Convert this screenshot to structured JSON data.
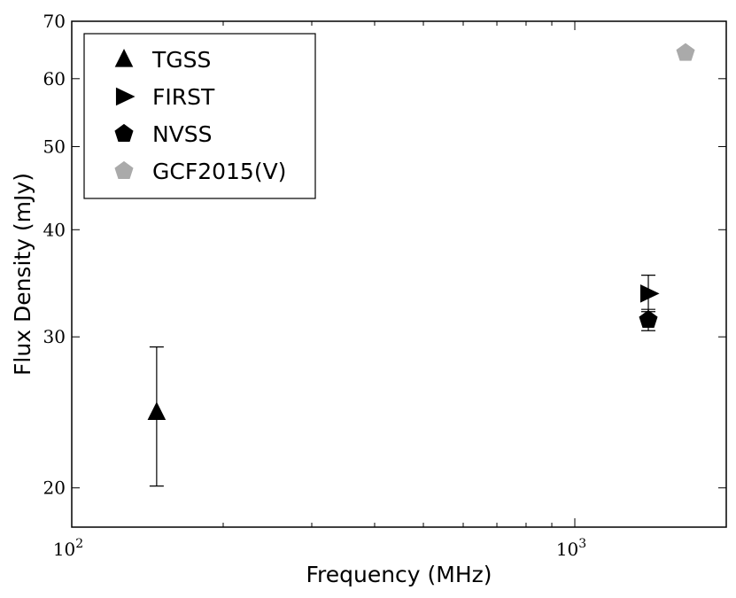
{
  "chart_data": {
    "type": "scatter",
    "title": "",
    "xlabel": "Frequency (MHz)",
    "ylabel": "Flux Density (mJy)",
    "xscale": "log",
    "yscale": "log",
    "xlim": [
      100,
      2000
    ],
    "ylim": [
      18,
      70
    ],
    "x_ticks": [
      {
        "value": 100,
        "base": "10",
        "exp": "2"
      },
      {
        "value": 1000,
        "base": "10",
        "exp": "3"
      }
    ],
    "y_ticks": [
      {
        "value": 20,
        "label": "20"
      },
      {
        "value": 30,
        "label": "30"
      },
      {
        "value": 40,
        "label": "40"
      },
      {
        "value": 50,
        "label": "50"
      },
      {
        "value": 60,
        "label": "60"
      },
      {
        "value": 70,
        "label": "70"
      }
    ],
    "grid": false,
    "legend_position": "top-left",
    "series": [
      {
        "name": "TGSS",
        "marker": "triangle-up",
        "color": "#000000",
        "points": [
          {
            "x": 147.5,
            "y": 24.5,
            "ylow": 20.1,
            "yhigh": 29.2
          }
        ]
      },
      {
        "name": "FIRST",
        "marker": "triangle-right",
        "color": "#000000",
        "points": [
          {
            "x": 1400,
            "y": 33.7,
            "ylow": 32.1,
            "yhigh": 35.4
          }
        ]
      },
      {
        "name": "NVSS",
        "marker": "pentagon",
        "color": "#000000",
        "points": [
          {
            "x": 1400,
            "y": 31.4,
            "ylow": 30.5,
            "yhigh": 32.3
          }
        ]
      },
      {
        "name": "GCF2015(V)",
        "marker": "pentagon",
        "color": "#aaaaaa",
        "points": [
          {
            "x": 1660,
            "y": 64.3,
            "ylow": 63.9,
            "yhigh": 64.7
          }
        ]
      }
    ]
  }
}
